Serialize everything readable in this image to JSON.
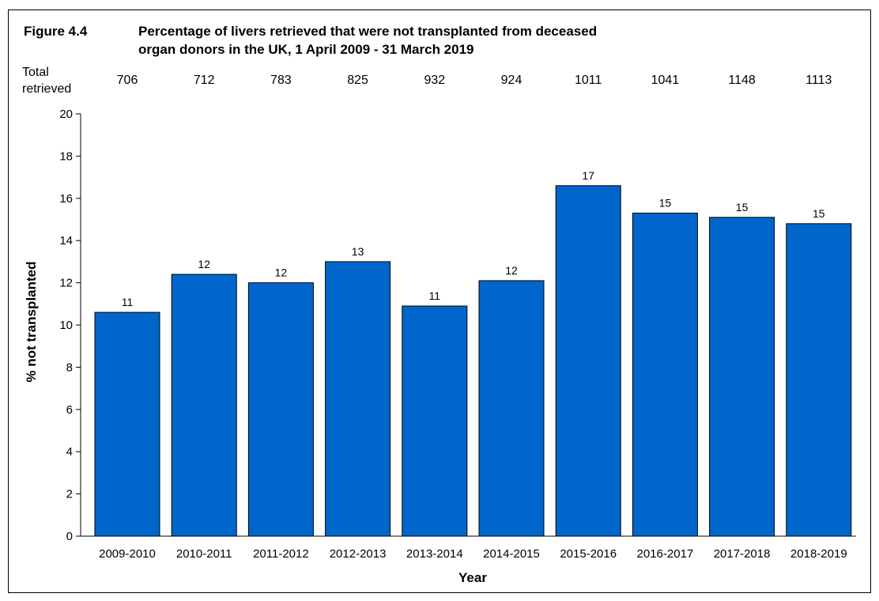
{
  "figure": {
    "number": "Figure 4.4",
    "title_line1": "Percentage of livers retrieved that were not transplanted from deceased",
    "title_line2": "organ donors in the UK, 1 April 2009 - 31 March 2019"
  },
  "retrieved": {
    "label_line1": "Total",
    "label_line2": "retrieved",
    "values": [
      "706",
      "712",
      "783",
      "825",
      "932",
      "924",
      "1011",
      "1041",
      "1148",
      "1113"
    ]
  },
  "chart_data": {
    "type": "bar",
    "categories": [
      "2009-2010",
      "2010-2011",
      "2011-2012",
      "2012-2013",
      "2013-2014",
      "2014-2015",
      "2015-2016",
      "2016-2017",
      "2017-2018",
      "2018-2019"
    ],
    "values": [
      10.6,
      12.4,
      12.0,
      13.0,
      10.9,
      12.1,
      16.6,
      15.3,
      15.1,
      14.8
    ],
    "data_labels": [
      "11",
      "12",
      "12",
      "13",
      "11",
      "12",
      "17",
      "15",
      "15",
      "15"
    ],
    "xlabel": "Year",
    "ylabel": "% not transplanted",
    "ylim": [
      0,
      20
    ],
    "yticks": [
      0,
      2,
      4,
      6,
      8,
      10,
      12,
      14,
      16,
      18,
      20
    ],
    "grid": false,
    "bar_color": "#0066CC"
  }
}
